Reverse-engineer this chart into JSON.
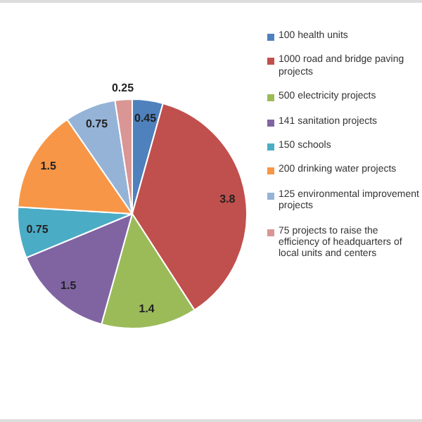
{
  "chart_data": {
    "type": "pie",
    "categories": [
      "100 health units",
      "1000 road and bridge paving projects",
      "500 electricity projects",
      "141 sanitation projects",
      "150 schools",
      "200 drinking water projects",
      "125 environmental improvement projects",
      "75 projects to raise the efficiency of headquarters of local units and centers"
    ],
    "values": [
      0.45,
      3.8,
      1.4,
      1.5,
      0.75,
      1.5,
      0.75,
      0.25
    ],
    "colors": [
      "#4f81bd",
      "#c0504d",
      "#9bbb59",
      "#8064a2",
      "#4bacc6",
      "#f79646",
      "#95b3d7",
      "#d99694"
    ],
    "data_labels": true,
    "legend": "right"
  }
}
